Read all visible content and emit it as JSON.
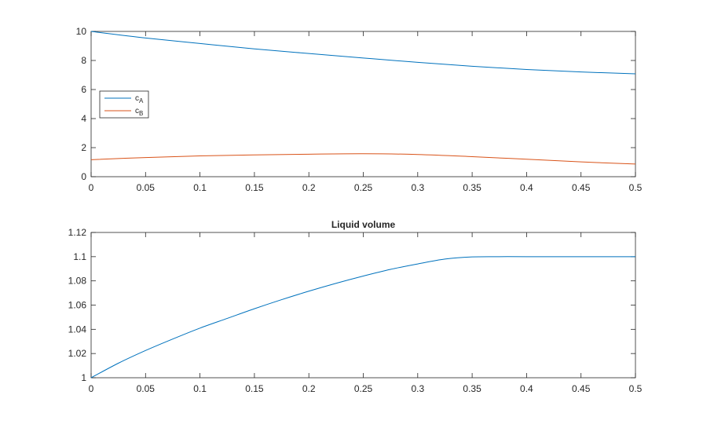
{
  "chart_data": [
    {
      "type": "line",
      "title": "",
      "xlabel": "",
      "ylabel": "",
      "xlim": [
        0,
        0.5
      ],
      "ylim": [
        0,
        10
      ],
      "xticks": [
        0,
        0.05,
        0.1,
        0.15,
        0.2,
        0.25,
        0.3,
        0.35,
        0.4,
        0.45,
        0.5
      ],
      "yticks": [
        0,
        2,
        4,
        6,
        8,
        10
      ],
      "grid": false,
      "legend_placement": "left",
      "series": [
        {
          "name": "cA",
          "legend_base": "c",
          "legend_sub": "A",
          "color": "#0072BD",
          "x": [
            0,
            0.05,
            0.1,
            0.15,
            0.2,
            0.25,
            0.3,
            0.35,
            0.4,
            0.45,
            0.5
          ],
          "y": [
            10.0,
            9.55,
            9.17,
            8.8,
            8.48,
            8.17,
            7.87,
            7.6,
            7.38,
            7.21,
            7.08
          ]
        },
        {
          "name": "cB",
          "legend_base": "c",
          "legend_sub": "B",
          "color": "#D95319",
          "x": [
            0,
            0.05,
            0.1,
            0.15,
            0.2,
            0.25,
            0.3,
            0.35,
            0.4,
            0.45,
            0.5
          ],
          "y": [
            1.17,
            1.32,
            1.43,
            1.5,
            1.55,
            1.58,
            1.53,
            1.38,
            1.2,
            1.02,
            0.87
          ]
        }
      ]
    },
    {
      "type": "line",
      "title": "Liquid volume",
      "xlabel": "",
      "ylabel": "",
      "xlim": [
        0,
        0.5
      ],
      "ylim": [
        1,
        1.12
      ],
      "xticks": [
        0,
        0.05,
        0.1,
        0.15,
        0.2,
        0.25,
        0.3,
        0.35,
        0.4,
        0.45,
        0.5
      ],
      "yticks": [
        1,
        1.02,
        1.04,
        1.06,
        1.08,
        1.1,
        1.12
      ],
      "grid": false,
      "series": [
        {
          "name": "",
          "color": "#0072BD",
          "x": [
            0,
            0.025,
            0.05,
            0.075,
            0.1,
            0.125,
            0.15,
            0.175,
            0.2,
            0.225,
            0.25,
            0.275,
            0.3,
            0.325,
            0.35,
            0.375,
            0.4,
            0.45,
            0.5
          ],
          "y": [
            1.0,
            1.012,
            1.0225,
            1.032,
            1.041,
            1.049,
            1.057,
            1.0645,
            1.0715,
            1.078,
            1.084,
            1.0895,
            1.094,
            1.098,
            1.0998,
            1.1,
            1.1,
            1.1,
            1.1
          ]
        }
      ]
    }
  ]
}
